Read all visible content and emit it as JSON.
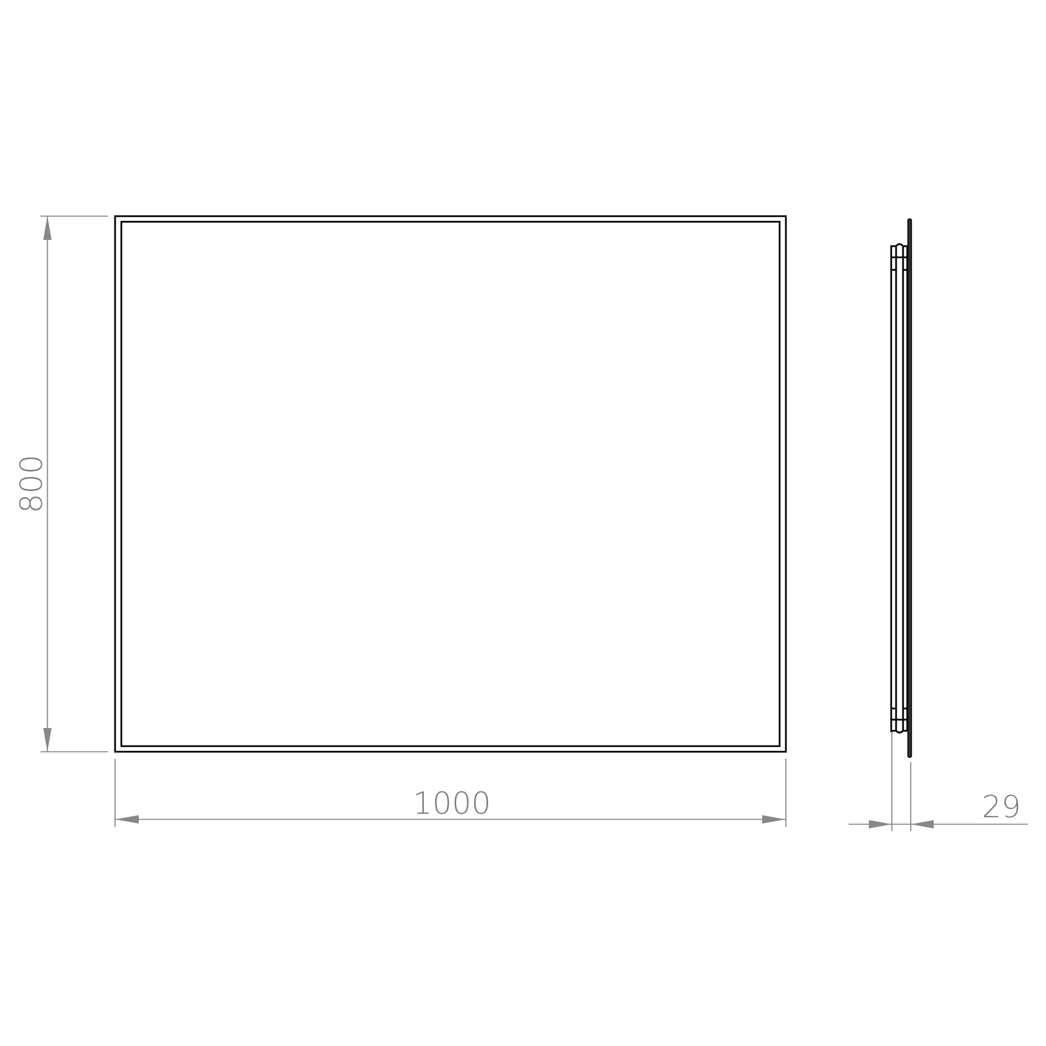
{
  "dimensions": {
    "height": "800",
    "width": "1000",
    "depth": "29"
  },
  "colors": {
    "outline": "#000000",
    "dimension": "#888888"
  }
}
